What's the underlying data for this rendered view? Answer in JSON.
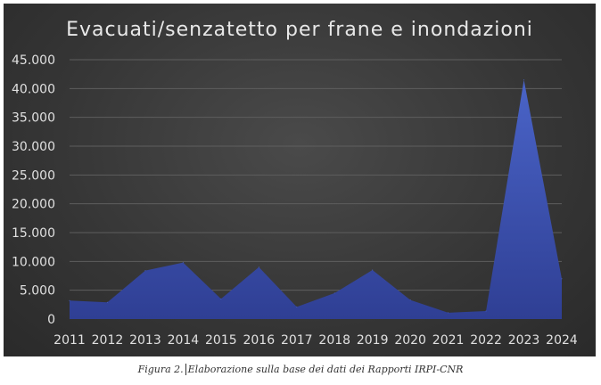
{
  "chart_data": {
    "type": "area",
    "title": "Evacuati/senzatetto per frane e inondazioni",
    "xlabel": "",
    "ylabel": "",
    "categories": [
      "2011",
      "2012",
      "2013",
      "2014",
      "2015",
      "2016",
      "2017",
      "2018",
      "2019",
      "2020",
      "2021",
      "2022",
      "2023",
      "2024"
    ],
    "values": [
      3200,
      2900,
      8400,
      9800,
      3500,
      9000,
      2100,
      4500,
      8500,
      3300,
      1100,
      1400,
      41500,
      7000
    ],
    "y_ticks": [
      "0",
      "5.000",
      "10.000",
      "15.000",
      "20.000",
      "25.000",
      "30.000",
      "35.000",
      "40.000",
      "45.000"
    ],
    "ylim": [
      0,
      45000
    ],
    "grid": true,
    "legend": "none",
    "colors": {
      "fill_top": "#4a64c8",
      "fill_bottom": "#2f3f94",
      "panel": "#3a3a3a"
    }
  },
  "caption": {
    "figure": "Figura 2.",
    "text": "Elaborazione sulla base dei dati dei Rapporti IRPI-CNR"
  }
}
